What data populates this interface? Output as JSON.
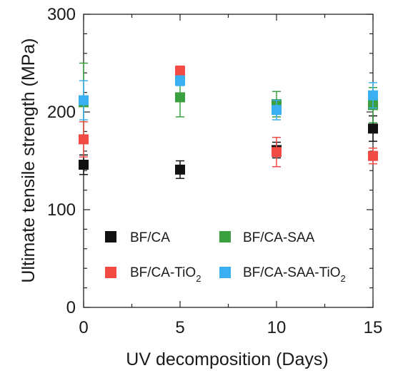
{
  "chart_data": {
    "type": "scatter",
    "xlabel": "UV decomposition (Days)",
    "ylabel": "Ultimate tensile strength (MPa)",
    "xlim": [
      0,
      15
    ],
    "ylim": [
      0,
      300
    ],
    "x_ticks": [
      "0",
      "5",
      "10",
      "15"
    ],
    "y_ticks": [
      "0",
      "100",
      "200",
      "300"
    ],
    "grid": false,
    "legend_position": "bottom-center",
    "series": [
      {
        "name": "BF/CA",
        "color": "#111111",
        "points": [
          {
            "x": 0,
            "y": 146,
            "err": 10
          },
          {
            "x": 5,
            "y": 141,
            "err": 9
          },
          {
            "x": 10,
            "y": 161,
            "err": 8
          },
          {
            "x": 15,
            "y": 183,
            "err": 13
          }
        ]
      },
      {
        "name": "BF/CA-SAA",
        "color": "#3aa040",
        "points": [
          {
            "x": 0,
            "y": 210,
            "err": 40
          },
          {
            "x": 5,
            "y": 215,
            "err": 20
          },
          {
            "x": 10,
            "y": 208,
            "err": 13
          },
          {
            "x": 15,
            "y": 207,
            "err": 18
          }
        ]
      },
      {
        "name": "BF/CA-TiO2",
        "color": "#f24a44",
        "points": [
          {
            "x": 0,
            "y": 172,
            "err": 18
          },
          {
            "x": 5,
            "y": 242,
            "err": 5
          },
          {
            "x": 10,
            "y": 159,
            "err": 15
          },
          {
            "x": 15,
            "y": 155,
            "err": 8
          }
        ]
      },
      {
        "name": "BF/CA-SAA-TiO2",
        "color": "#3ab0f2",
        "points": [
          {
            "x": 0,
            "y": 212,
            "err": 20
          },
          {
            "x": 5,
            "y": 232,
            "err": 5
          },
          {
            "x": 10,
            "y": 202,
            "err": 10
          },
          {
            "x": 15,
            "y": 217,
            "err": 13
          }
        ]
      }
    ]
  },
  "legend": {
    "items": [
      {
        "main": "BF/CA",
        "sub": ""
      },
      {
        "main": "BF/CA-SAA",
        "sub": ""
      },
      {
        "main": "BF/CA-TiO",
        "sub": "2"
      },
      {
        "main": "BF/CA-SAA-TiO",
        "sub": "2"
      }
    ]
  }
}
